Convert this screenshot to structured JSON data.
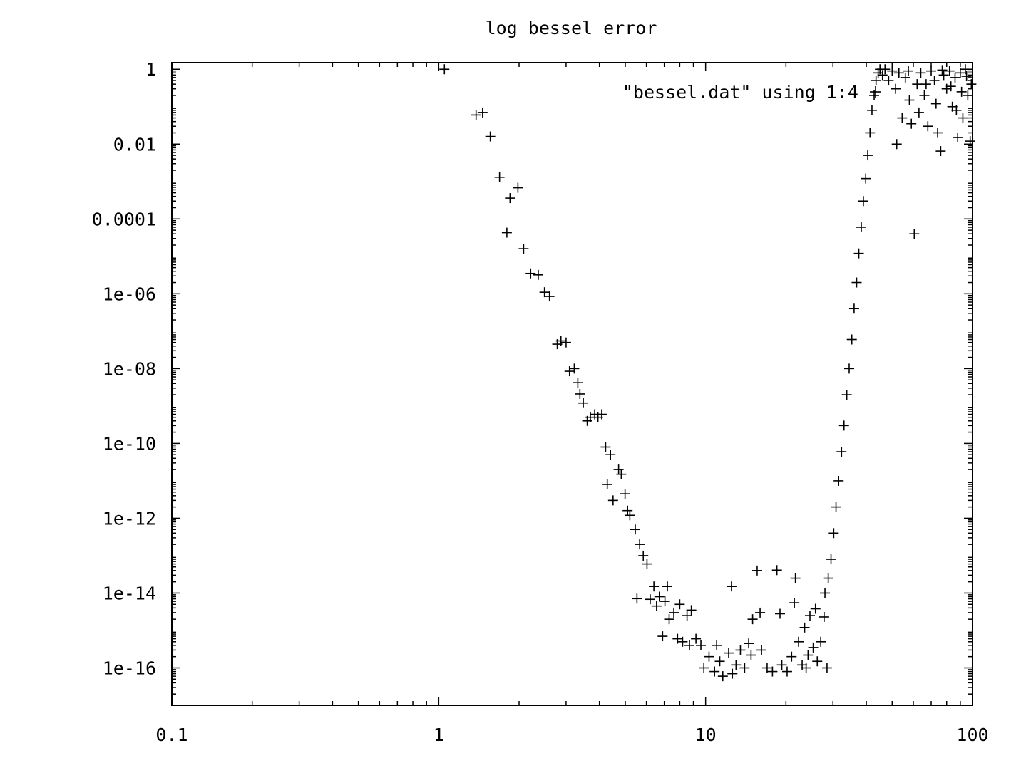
{
  "chart_data": {
    "type": "scatter",
    "title": "log bessel error",
    "xlabel": "",
    "ylabel": "",
    "x_scale": "log",
    "y_scale": "log",
    "xlim": [
      0.1,
      100
    ],
    "ylim": [
      1e-17,
      1.5
    ],
    "grid": false,
    "legend_position": "top-right",
    "marker": "plus",
    "colors": {
      "foreground": "#000000",
      "background": "#ffffff"
    },
    "x_ticks": [
      {
        "value": 0.1,
        "label": "0.1"
      },
      {
        "value": 1,
        "label": "1"
      },
      {
        "value": 10,
        "label": "10"
      },
      {
        "value": 100,
        "label": "100"
      }
    ],
    "y_ticks": [
      {
        "value": 1,
        "label": "1"
      },
      {
        "value": 0.01,
        "label": "0.01"
      },
      {
        "value": 0.0001,
        "label": "0.0001"
      },
      {
        "value": 1e-06,
        "label": "1e-06"
      },
      {
        "value": 1e-08,
        "label": "1e-08"
      },
      {
        "value": 1e-10,
        "label": "1e-10"
      },
      {
        "value": 1e-12,
        "label": "1e-12"
      },
      {
        "value": 1e-14,
        "label": "1e-14"
      },
      {
        "value": 1e-16,
        "label": "1e-16"
      }
    ],
    "series": [
      {
        "name": "\"bessel.dat\" using 1:4",
        "points": [
          [
            1.05,
            1.0
          ],
          [
            1.38,
            0.06
          ],
          [
            1.46,
            0.07
          ],
          [
            1.56,
            0.016
          ],
          [
            1.69,
            0.0013
          ],
          [
            1.85,
            0.00036
          ],
          [
            1.98,
            0.00068
          ],
          [
            1.8,
            4.3e-05
          ],
          [
            2.08,
            1.6e-05
          ],
          [
            2.21,
            3.5e-06
          ],
          [
            2.36,
            3.2e-06
          ],
          [
            2.49,
            1.1e-06
          ],
          [
            2.6,
            8.5e-07
          ],
          [
            2.78,
            4.5e-08
          ],
          [
            2.87,
            5.5e-08
          ],
          [
            3.0,
            5e-08
          ],
          [
            3.09,
            8.5e-09
          ],
          [
            3.22,
            1e-08
          ],
          [
            3.32,
            4.2e-09
          ],
          [
            3.38,
            2.1e-09
          ],
          [
            3.48,
            1.2e-09
          ],
          [
            3.6,
            4e-10
          ],
          [
            3.7,
            5e-10
          ],
          [
            3.84,
            6e-10
          ],
          [
            3.95,
            5e-10
          ],
          [
            4.08,
            6e-10
          ],
          [
            4.22,
            8e-11
          ],
          [
            4.4,
            5e-11
          ],
          [
            4.72,
            2e-11
          ],
          [
            4.83,
            1.5e-11
          ],
          [
            4.99,
            4.5e-12
          ],
          [
            4.28,
            8e-12
          ],
          [
            4.5,
            3e-12
          ],
          [
            5.1,
            1.6e-12
          ],
          [
            5.2,
            1.2e-12
          ],
          [
            5.45,
            5e-13
          ],
          [
            5.66,
            2e-13
          ],
          [
            5.84,
            1e-13
          ],
          [
            6.03,
            6e-14
          ],
          [
            6.4,
            1.5e-14
          ],
          [
            6.71,
            8e-15
          ],
          [
            7.04,
            6e-15
          ],
          [
            7.19,
            1.5e-14
          ],
          [
            7.6,
            3e-15
          ],
          [
            8.0,
            5e-15
          ],
          [
            8.52,
            2.5e-15
          ],
          [
            8.84,
            3.5e-15
          ],
          [
            5.53,
            7.1e-15
          ],
          [
            6.2,
            6.8e-15
          ],
          [
            6.55,
            4.5e-15
          ],
          [
            7.3,
            2e-15
          ],
          [
            6.9,
            7e-16
          ],
          [
            7.85,
            6e-16
          ],
          [
            8.2,
            5e-16
          ],
          [
            8.7,
            4e-16
          ],
          [
            9.2,
            6e-16
          ],
          [
            9.6,
            4e-16
          ],
          [
            9.85,
            1e-16
          ],
          [
            10.3,
            2e-16
          ],
          [
            10.8,
            8e-17
          ],
          [
            11.3,
            1.5e-16
          ],
          [
            11.6,
            6e-17
          ],
          [
            12.2,
            2.5e-16
          ],
          [
            12.6,
            7e-17
          ],
          [
            13.0,
            1.2e-16
          ],
          [
            13.5,
            3e-16
          ],
          [
            14.0,
            1e-16
          ],
          [
            14.5,
            4.5e-16
          ],
          [
            15.0,
            2e-15
          ],
          [
            15.6,
            4e-14
          ],
          [
            16.2,
            3e-16
          ],
          [
            17.0,
            1e-16
          ],
          [
            17.8,
            8e-17
          ],
          [
            18.5,
            4.1e-14
          ],
          [
            19.3,
            1.2e-16
          ],
          [
            20.2,
            8e-17
          ],
          [
            21.0,
            2e-16
          ],
          [
            21.7,
            2.5e-14
          ],
          [
            22.3,
            5e-16
          ],
          [
            23.0,
            1.2e-16
          ],
          [
            23.8,
            1e-16
          ],
          [
            24.6,
            2.5e-15
          ],
          [
            25.3,
            3.5e-16
          ],
          [
            26.2,
            1.5e-16
          ],
          [
            27.0,
            5e-16
          ],
          [
            27.8,
            2.3e-15
          ],
          [
            28.5,
            1e-16
          ],
          [
            12.5,
            1.5e-14
          ],
          [
            16.0,
            3e-15
          ],
          [
            19.0,
            2.8e-15
          ],
          [
            21.5,
            5.5e-15
          ],
          [
            23.5,
            1.2e-15
          ],
          [
            25.8,
            3.8e-15
          ],
          [
            24.2,
            2.2e-16
          ],
          [
            14.8,
            2.2e-16
          ],
          [
            11.0,
            4e-16
          ],
          [
            28.0,
            1e-14
          ],
          [
            28.8,
            2.5e-14
          ],
          [
            29.5,
            8e-14
          ],
          [
            30.2,
            4e-13
          ],
          [
            30.8,
            2e-12
          ],
          [
            31.5,
            1e-11
          ],
          [
            32.3,
            6e-11
          ],
          [
            33.0,
            3e-10
          ],
          [
            33.8,
            2e-09
          ],
          [
            34.5,
            1e-08
          ],
          [
            35.3,
            6e-08
          ],
          [
            36.0,
            4e-07
          ],
          [
            36.8,
            2e-06
          ],
          [
            37.5,
            1.2e-05
          ],
          [
            38.3,
            6e-05
          ],
          [
            39.0,
            0.0003
          ],
          [
            39.8,
            0.0012
          ],
          [
            40.5,
            0.005
          ],
          [
            41.3,
            0.02
          ],
          [
            42.0,
            0.08
          ],
          [
            42.8,
            0.2
          ],
          [
            43.5,
            0.5
          ],
          [
            44.3,
            0.8
          ],
          [
            45.0,
            1.0
          ],
          [
            46.0,
            0.7
          ],
          [
            47.0,
            1.0
          ],
          [
            48.5,
            0.5
          ],
          [
            50.0,
            0.9
          ],
          [
            51.5,
            0.3
          ],
          [
            53.0,
            0.8
          ],
          [
            54.5,
            0.05
          ],
          [
            56.0,
            0.6
          ],
          [
            57.5,
            0.9
          ],
          [
            59.0,
            0.035
          ],
          [
            60.5,
            4e-05
          ],
          [
            62.0,
            0.4
          ],
          [
            64.0,
            0.8
          ],
          [
            66.0,
            0.2
          ],
          [
            68.0,
            0.03
          ],
          [
            70.0,
            0.9
          ],
          [
            72.0,
            0.5
          ],
          [
            74.0,
            0.02
          ],
          [
            76.0,
            0.0065
          ],
          [
            78.0,
            0.7
          ],
          [
            80.0,
            0.3
          ],
          [
            82.0,
            0.9
          ],
          [
            84.0,
            0.1
          ],
          [
            86.0,
            0.6
          ],
          [
            88.0,
            0.015
          ],
          [
            90.0,
            0.8
          ],
          [
            92.0,
            0.05
          ],
          [
            94.0,
            1.0
          ],
          [
            96.0,
            0.2
          ],
          [
            98.0,
            0.012
          ],
          [
            99.0,
            0.4
          ],
          [
            52.0,
            0.01
          ],
          [
            58.0,
            0.15
          ],
          [
            63.0,
            0.07
          ],
          [
            67.0,
            0.4
          ],
          [
            73.0,
            0.12
          ],
          [
            77.0,
            0.95
          ],
          [
            83.0,
            0.35
          ],
          [
            87.0,
            0.08
          ],
          [
            91.0,
            0.25
          ],
          [
            95.0,
            0.65
          ]
        ]
      }
    ]
  }
}
